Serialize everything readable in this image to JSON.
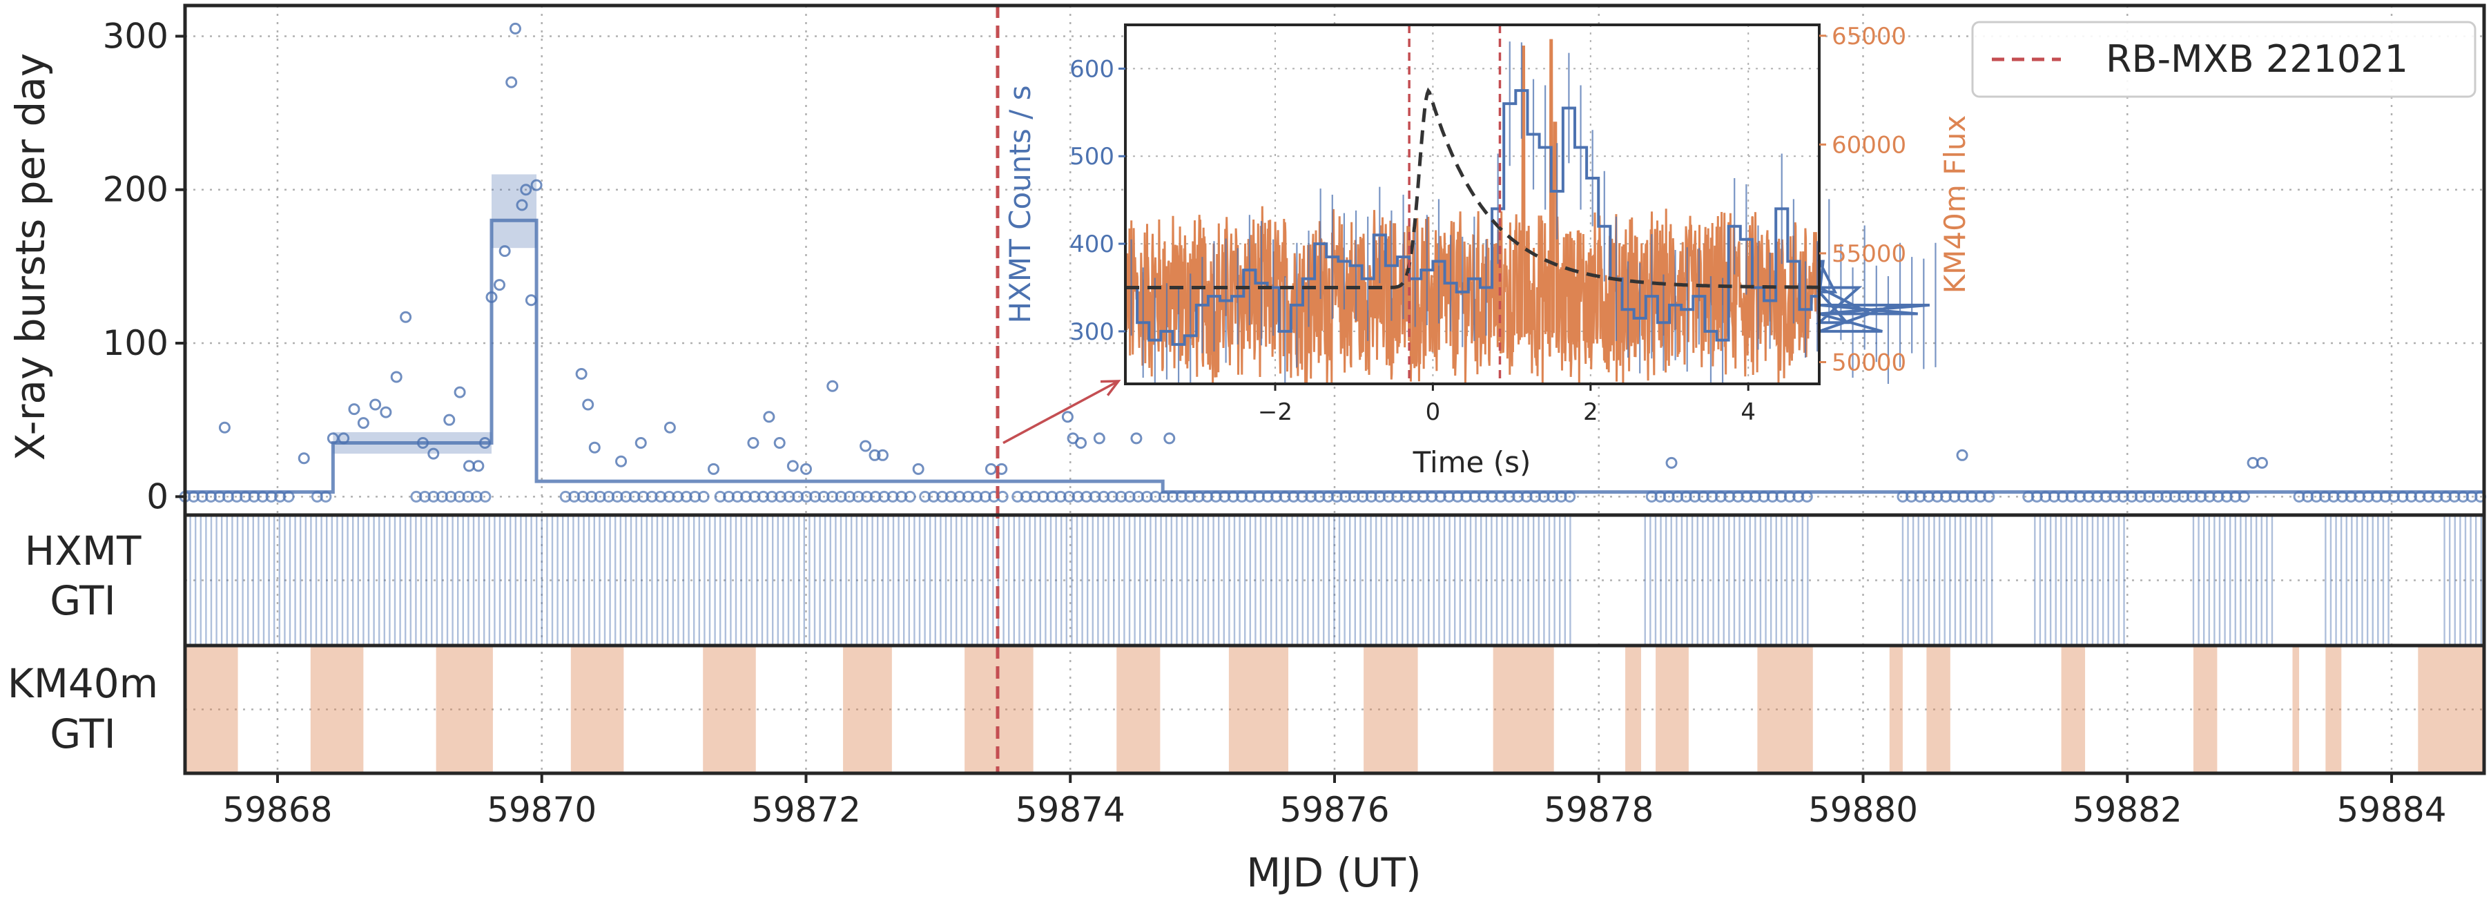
{
  "chart_data": {
    "type": "line",
    "title": "",
    "xlabel": "MJD (UT)",
    "xlim": [
      59867.3,
      59884.7
    ],
    "x_ticks": [
      59868,
      59870,
      59872,
      59874,
      59876,
      59878,
      59880,
      59882,
      59884
    ],
    "grid": true,
    "event": {
      "name": "RB-MXB 221021",
      "x": 59873.45,
      "color": "#c44e52"
    },
    "legend": {
      "placement": "top-right",
      "entries": [
        "RB-MXB 221021"
      ]
    },
    "panels": {
      "bursts": {
        "ylabel": "X-ray bursts per day",
        "ylim": [
          -12,
          320
        ],
        "y_ticks": [
          0,
          100,
          200,
          300
        ],
        "color": "#4c72b0",
        "daily_rates": [
          [
            59867.6,
            45
          ],
          [
            59868.2,
            25
          ],
          [
            59868.42,
            38
          ],
          [
            59868.5,
            38
          ],
          [
            59868.58,
            57
          ],
          [
            59868.65,
            48
          ],
          [
            59868.74,
            60
          ],
          [
            59868.82,
            55
          ],
          [
            59868.9,
            78
          ],
          [
            59868.97,
            117
          ],
          [
            59869.1,
            35
          ],
          [
            59869.18,
            28
          ],
          [
            59869.3,
            50
          ],
          [
            59869.38,
            68
          ],
          [
            59869.45,
            20
          ],
          [
            59869.52,
            20
          ],
          [
            59869.57,
            35
          ],
          [
            59869.62,
            130
          ],
          [
            59869.68,
            138
          ],
          [
            59869.72,
            160
          ],
          [
            59869.77,
            270
          ],
          [
            59869.8,
            305
          ],
          [
            59869.85,
            190
          ],
          [
            59869.88,
            200
          ],
          [
            59869.92,
            128
          ],
          [
            59869.96,
            203
          ],
          [
            59870.3,
            80
          ],
          [
            59870.35,
            60
          ],
          [
            59870.4,
            32
          ],
          [
            59870.6,
            23
          ],
          [
            59870.75,
            35
          ],
          [
            59870.97,
            45
          ],
          [
            59871.3,
            18
          ],
          [
            59871.6,
            35
          ],
          [
            59871.72,
            52
          ],
          [
            59871.8,
            35
          ],
          [
            59871.9,
            20
          ],
          [
            59872.0,
            18
          ],
          [
            59872.2,
            72
          ],
          [
            59872.45,
            33
          ],
          [
            59872.52,
            27
          ],
          [
            59872.58,
            27
          ],
          [
            59872.85,
            18
          ],
          [
            59873.4,
            18
          ],
          [
            59873.48,
            18
          ],
          [
            59873.98,
            52
          ],
          [
            59874.02,
            38
          ],
          [
            59874.08,
            35
          ],
          [
            59874.22,
            38
          ],
          [
            59874.5,
            38
          ],
          [
            59874.75,
            38
          ],
          [
            59878.55,
            22
          ],
          [
            59880.75,
            27
          ],
          [
            59882.95,
            22
          ],
          [
            59883.02,
            22
          ]
        ],
        "zero_day_ranges": [
          [
            59867.3,
            59868.1
          ],
          [
            59868.3,
            59868.42
          ],
          [
            59869.05,
            59869.6
          ],
          [
            59870.18,
            59871.25
          ],
          [
            59871.35,
            59872.8
          ],
          [
            59872.9,
            59873.55
          ],
          [
            59873.6,
            59877.8
          ],
          [
            59878.4,
            59879.6
          ],
          [
            59880.3,
            59881.0
          ],
          [
            59881.25,
            59882.9
          ],
          [
            59883.3,
            59884.7
          ]
        ],
        "step_rate": [
          [
            59867.3,
            3
          ],
          [
            59868.42,
            35
          ],
          [
            59869.62,
            180
          ],
          [
            59869.96,
            10
          ],
          [
            59874.5,
            10
          ],
          [
            59874.7,
            3
          ],
          [
            59884.7,
            3
          ]
        ],
        "uncertainty_bands": [
          {
            "x": [
              59868.42,
              59869.62
            ],
            "y": [
              28,
              42
            ]
          },
          {
            "x": [
              59869.62,
              59869.96
            ],
            "y": [
              162,
              210
            ]
          }
        ]
      },
      "hxmt_gti": {
        "label": [
          "HXMT",
          "GTI"
        ],
        "color": "#4c72b0",
        "coverage": [
          [
            59867.3,
            59877.8
          ],
          [
            59878.35,
            59879.6
          ],
          [
            59880.3,
            59881.0
          ],
          [
            59881.3,
            59882.0
          ],
          [
            59882.5,
            59883.1
          ],
          [
            59883.5,
            59884.0
          ],
          [
            59884.4,
            59884.7
          ]
        ]
      },
      "km40m_gti": {
        "label": [
          "KM40m",
          "GTI"
        ],
        "color": "#dd8452",
        "intervals": [
          [
            59867.3,
            59867.7
          ],
          [
            59868.25,
            59868.65
          ],
          [
            59869.2,
            59869.63
          ],
          [
            59870.22,
            59870.62
          ],
          [
            59871.22,
            59871.62
          ],
          [
            59872.28,
            59872.65
          ],
          [
            59873.2,
            59873.72
          ],
          [
            59874.35,
            59874.68
          ],
          [
            59875.2,
            59875.65
          ],
          [
            59876.22,
            59876.63
          ],
          [
            59877.2,
            59877.66
          ],
          [
            59878.2,
            59878.32
          ],
          [
            59878.43,
            59878.68
          ],
          [
            59879.2,
            59879.62
          ],
          [
            59880.2,
            59880.3
          ],
          [
            59880.48,
            59880.66
          ],
          [
            59881.5,
            59881.68
          ],
          [
            59882.5,
            59882.68
          ],
          [
            59883.25,
            59883.3
          ],
          [
            59883.5,
            59883.62
          ],
          [
            59884.2,
            59884.7
          ]
        ]
      }
    },
    "inset": {
      "xlabel": "Time (s)",
      "ylabel_left": "HXMT Counts / s",
      "ylabel_right": "KM40m Flux",
      "xlim": [
        -3.9,
        4.9
      ],
      "ylim_left": [
        240,
        650
      ],
      "ylim_right": [
        49000,
        65500
      ],
      "x_ticks": [
        -2,
        0,
        2,
        4
      ],
      "y_ticks_left": [
        300,
        400,
        500,
        600
      ],
      "y_ticks_right": [
        50000,
        55000,
        60000,
        65000
      ],
      "marker_lines": [
        -0.3,
        0.85
      ],
      "hxmt_color": "#4c72b0",
      "km40m_color": "#dd8452",
      "model_color": "#333333",
      "hxmt_bin_width": 0.15,
      "hxmt_counts": [
        350,
        310,
        290,
        300,
        285,
        295,
        330,
        340,
        335,
        340,
        370,
        355,
        350,
        300,
        330,
        360,
        400,
        385,
        380,
        375,
        360,
        410,
        375,
        385,
        360,
        370,
        380,
        355,
        345,
        360,
        350,
        440,
        560,
        575,
        525,
        510,
        460,
        555,
        510,
        475,
        420,
        360,
        325,
        315,
        340,
        310,
        330,
        325,
        340,
        300,
        290,
        420,
        405,
        350,
        335,
        440,
        380,
        325,
        340,
        380,
        345,
        310,
        350,
        320,
        300,
        330,
        330,
        320,
        330
      ],
      "km40m_baseline": 53000,
      "km40m_spikes": [
        [
          1.15,
          64500
        ],
        [
          1.5,
          64800
        ],
        [
          1.55,
          61000
        ]
      ],
      "model_baseline": 350,
      "model_peak": 575,
      "model_peak_time": -0.05,
      "model_rise_s": 0.12,
      "model_decay_s": 0.75
    }
  }
}
